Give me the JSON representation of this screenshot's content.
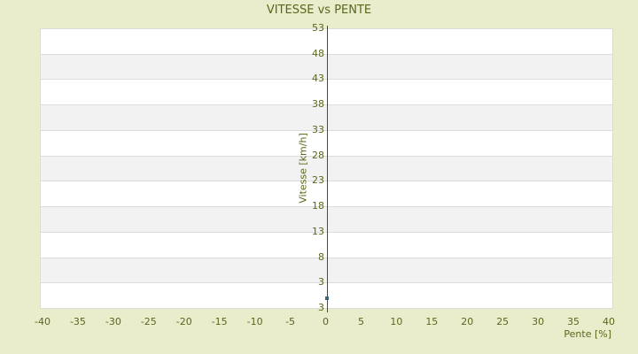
{
  "chart_data": {
    "type": "scatter",
    "title": "VITESSE vs PENTE",
    "xlabel": "Pente [%]",
    "ylabel": "Vitesse [km/h]",
    "xlim": [
      -40,
      40
    ],
    "x_ticks": [
      "-40",
      "-35",
      "-30",
      "-25",
      "-20",
      "-15",
      "-10",
      "-5",
      "0",
      "5",
      "10",
      "15",
      "20",
      "25",
      "30",
      "35",
      "40"
    ],
    "y_ticks": [
      "53",
      "48",
      "43",
      "38",
      "33",
      "28",
      "23",
      "18",
      "13",
      "8",
      "3",
      "3"
    ],
    "grid": "horizontal alternating stripes, no vertical gridlines",
    "legend": "none",
    "series": [
      {
        "name": "Vitesse",
        "points": [
          {
            "x": 0,
            "y": 5
          }
        ]
      }
    ]
  },
  "colors": {
    "background": "#e9edcb",
    "plot_background": "#ffffff",
    "stripe_alt": "#f2f2f2",
    "gridline": "#dcdcdc",
    "text": "#5a661c",
    "axis_line": "#4a5404",
    "marker": "#3f6678"
  }
}
